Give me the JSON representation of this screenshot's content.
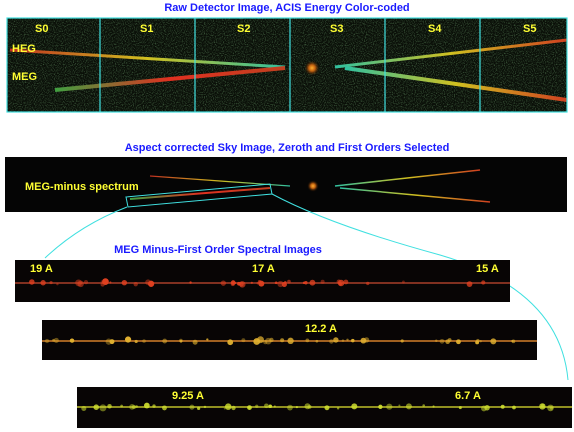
{
  "panel1": {
    "title": "Raw Detector Image, ACIS Energy Color-coded",
    "chips": [
      "S0",
      "S1",
      "S2",
      "S3",
      "S4",
      "S5"
    ],
    "heg": "HEG",
    "meg": "MEG"
  },
  "panel2": {
    "title": "Aspect corrected Sky Image, Zeroth and First Orders Selected",
    "label": "MEG-minus spectrum"
  },
  "panel3": {
    "title": "MEG Minus-First Order Spectral Images",
    "strip1": [
      "19 A",
      "17 A",
      "15 A"
    ],
    "strip2": [
      "12.2 A"
    ],
    "strip3": [
      "9.25 A",
      "6.7 A"
    ]
  }
}
